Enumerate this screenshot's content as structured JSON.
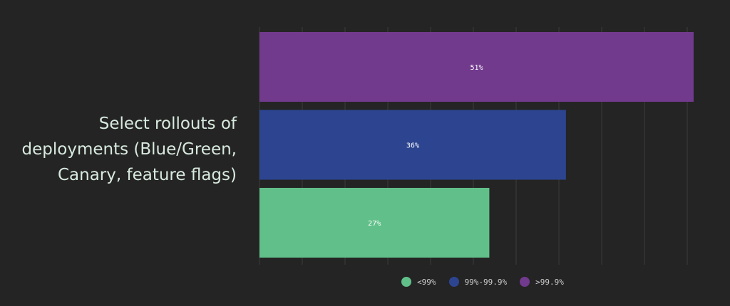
{
  "chart_data": {
    "type": "bar",
    "orientation": "horizontal",
    "category": "Select rollouts of deployments (Blue/Green, Canary, feature flags)",
    "xlim": [
      0,
      51
    ],
    "grid": true,
    "legend_position": "bottom",
    "series": [
      {
        "name": ">99.9%",
        "value": 51,
        "label": "51%",
        "color": "#713a8d"
      },
      {
        "name": "99%-99.9%",
        "value": 36,
        "label": "36%",
        "color": "#2d4590"
      },
      {
        "name": "<99%",
        "value": 27,
        "label": "27%",
        "color": "#61c08a"
      }
    ],
    "legend": [
      {
        "label": "<99%",
        "color": "#61c08a"
      },
      {
        "label": "99%-99.9%",
        "color": "#2d4590"
      },
      {
        "label": ">99.9%",
        "color": "#713a8d"
      }
    ]
  }
}
